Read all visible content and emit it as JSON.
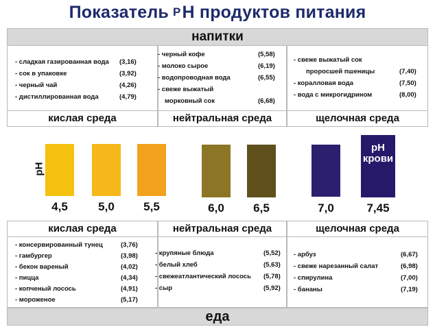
{
  "title": {
    "main": "Показатель",
    "ph": "P",
    "rest": "Н продуктов питания"
  },
  "drinks": {
    "header": "напитки",
    "acid": [
      {
        "name": "- сладкая газированная вода",
        "ph": "(3,16)"
      },
      {
        "name": "- сок в упаковке",
        "ph": "(3,92)"
      },
      {
        "name": "- черный чай",
        "ph": "(4,26)"
      },
      {
        "name": "- дистиллированная вода",
        "ph": "(4,79)"
      }
    ],
    "neutral": [
      {
        "name": "- черный кофе",
        "ph": "(5,58)"
      },
      {
        "name": "- молоко сырое",
        "ph": "(6,19)"
      },
      {
        "name": "- водопроводная вода",
        "ph": "(6,55)"
      },
      {
        "name": "- свеже выжатый",
        "ph": ""
      },
      {
        "name": "морковный сок",
        "ph": "(6,68)"
      }
    ],
    "alkaline": [
      {
        "name": "- свеже выжатый сок",
        "ph": ""
      },
      {
        "name": "проросшей пшеницы",
        "ph": "(7,40)"
      },
      {
        "name": "- коралловая вода",
        "ph": "(7,50)"
      },
      {
        "name": "- вода с микрогидрином",
        "ph": "(8,00)"
      }
    ]
  },
  "sections_top": [
    "кислая среда",
    "нейтральная среда",
    "щелочная среда"
  ],
  "scale": {
    "axis_label": "pH",
    "swatches": [
      {
        "value": "4,5",
        "color": "#f4c10f"
      },
      {
        "value": "5,0",
        "color": "#f6b81b"
      },
      {
        "value": "5,5",
        "color": "#f2a21c"
      },
      {
        "value": "6,0",
        "color": "#8c7626"
      },
      {
        "value": "6,5",
        "color": "#5e4f1c"
      },
      {
        "value": "7,0",
        "color": "#2b1f6e"
      },
      {
        "value": "7,45",
        "color": "#27196a"
      }
    ],
    "blood_label_1": "pH",
    "blood_label_2": "крови"
  },
  "sections_bottom": [
    "кислая среда",
    "нейтральная среда",
    "щелочная среда"
  ],
  "food": {
    "footer": "еда",
    "acid": [
      {
        "name": "- консервированный тунец",
        "ph": "(3,76)"
      },
      {
        "name": "- гамбургер",
        "ph": "(3,98)"
      },
      {
        "name": "- бекон вареный",
        "ph": "(4,02)"
      },
      {
        "name": "- пицца",
        "ph": "(4,34)"
      },
      {
        "name": "- копченый лосось",
        "ph": "(4,91)"
      },
      {
        "name": "- мороженое",
        "ph": "(5,17)"
      }
    ],
    "neutral": [
      {
        "name": "- крупяные блюда",
        "ph": "(5,52)"
      },
      {
        "name": "- белый хлеб",
        "ph": "(5,63)"
      },
      {
        "name": "- свежеатлантический лосось",
        "ph": "(5,78)"
      },
      {
        "name": "- сыр",
        "ph": "(5,92)"
      }
    ],
    "alkaline": [
      {
        "name": "- арбуз",
        "ph": "(6,67)"
      },
      {
        "name": "- свеже нарезанный салат",
        "ph": "(6,98)"
      },
      {
        "name": "- спирулина",
        "ph": "(7,00)"
      },
      {
        "name": "- бананы",
        "ph": "(7,19)"
      }
    ]
  }
}
